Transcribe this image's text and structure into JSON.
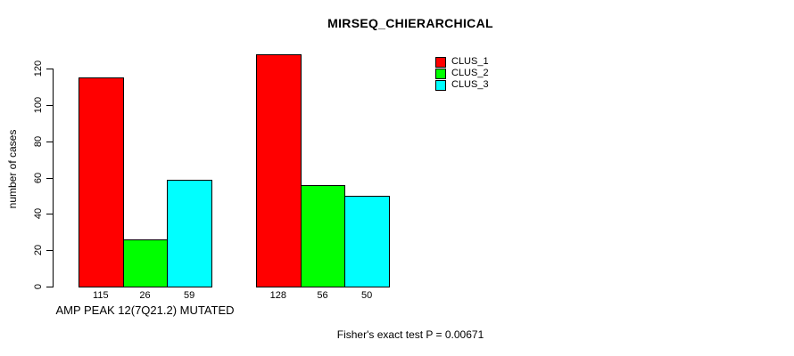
{
  "chart_data": {
    "type": "bar",
    "title": "MIRSEQ_CHIERARCHICAL",
    "ylabel": "number of cases",
    "xlabel": "",
    "ylim": [
      0,
      120
    ],
    "yticks": [
      0,
      20,
      40,
      60,
      80,
      100,
      120
    ],
    "grid": false,
    "legend_position": "top-right",
    "series_names": [
      "CLUS_1",
      "CLUS_2",
      "CLUS_3"
    ],
    "series_colors": [
      "#FF0000",
      "#00FF00",
      "#00FFFF"
    ],
    "groups": [
      {
        "label": "AMP PEAK 12(7Q21.2) MUTATED",
        "values": [
          115,
          26,
          59
        ]
      },
      {
        "label": "",
        "values": [
          128,
          56,
          50
        ]
      }
    ],
    "bar_value_labels": [
      115,
      26,
      59,
      128,
      56,
      50
    ],
    "annotation": "Fisher's exact test P = 0.00671",
    "text_color": "#000000",
    "background_color": "#FFFFFF"
  }
}
